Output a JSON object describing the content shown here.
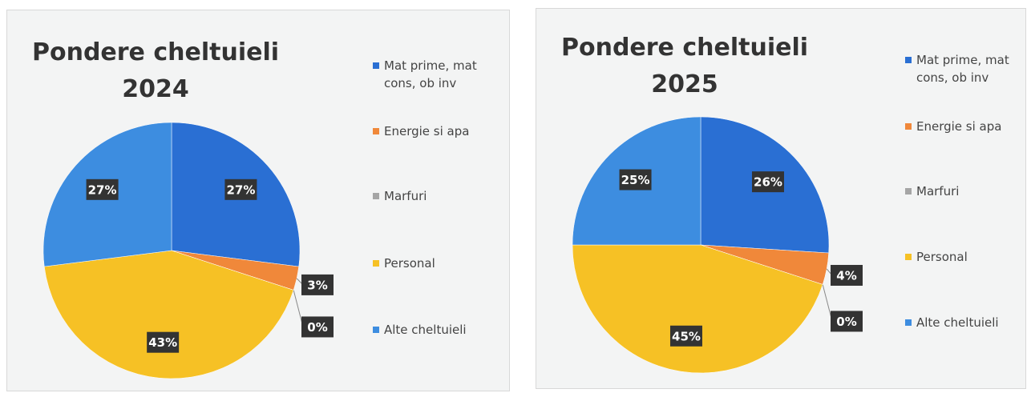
{
  "chart_data": [
    {
      "type": "pie",
      "title": "Pondere cheltuieli 2024",
      "categories": [
        "Mat prime, mat cons, ob inv",
        "Energie si apa",
        "Marfuri",
        "Personal",
        "Alte cheltuieli"
      ],
      "values": [
        27,
        3,
        0,
        43,
        27
      ],
      "value_labels": [
        "27%",
        "3%",
        "0%",
        "43%",
        "27%"
      ],
      "colors": [
        "#2a6fd3",
        "#f0883a",
        "#a5a5a5",
        "#f6c125",
        "#3d8de0"
      ]
    },
    {
      "type": "pie",
      "title": "Pondere cheltuieli 2025",
      "categories": [
        "Mat prime, mat cons, ob inv",
        "Energie si apa",
        "Marfuri",
        "Personal",
        "Alte cheltuieli"
      ],
      "values": [
        26,
        4,
        0,
        45,
        25
      ],
      "value_labels": [
        "26%",
        "4%",
        "0%",
        "45%",
        "25%"
      ],
      "colors": [
        "#2a6fd3",
        "#f0883a",
        "#a5a5a5",
        "#f6c125",
        "#3d8de0"
      ]
    }
  ]
}
